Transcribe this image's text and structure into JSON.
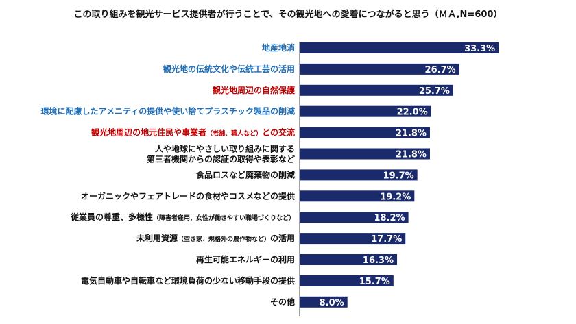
{
  "chart_data": {
    "type": "bar",
    "orientation": "horizontal",
    "title": "この取り組みを観光サービス提供者が行うことで、その観光地への愛着につながると思う（ＭＡ,N=600）",
    "categories": [
      {
        "label": "地産地消",
        "color": "#1f6db5"
      },
      {
        "label": "観光地の伝統文化や伝統工芸の活用",
        "color": "#1f6db5"
      },
      {
        "label": "観光地周辺の自然保護",
        "color": "#c00000"
      },
      {
        "label": "環境に配慮したアメニティの提供や使い捨てプラスチック製品の削減",
        "color": "#1f6db5"
      },
      {
        "label": "観光地周辺の地元住民や事業者",
        "note": "（老舗、職人など）",
        "after": "との交流",
        "color": "#c00000"
      },
      {
        "label": "人や地球にやさしい取り組みに関する",
        "label2": "第三者機関からの認証の取得や表彰など",
        "color": "#111111"
      },
      {
        "label": "食品ロスなど廃棄物の削減",
        "color": "#111111"
      },
      {
        "label": "オーガニックやフェアトレードの食材やコスメなどの提供",
        "color": "#111111"
      },
      {
        "label": "従業員の尊重、多様性",
        "note": "（障害者雇用、女性が働きやすい職場づくりなど）",
        "color": "#111111"
      },
      {
        "label": "未利用資源",
        "note": "（空き家、規格外の農作物など）",
        "after": "の活用",
        "color": "#111111"
      },
      {
        "label": "再生可能エネルギーの利用",
        "color": "#111111"
      },
      {
        "label": "電気自動車や自転車など環境負荷の少ない移動手段の提供",
        "color": "#111111"
      },
      {
        "label": "その他",
        "color": "#111111"
      }
    ],
    "values": [
      33.3,
      26.7,
      25.7,
      22.0,
      21.8,
      21.8,
      19.7,
      19.2,
      18.2,
      17.7,
      16.3,
      15.7,
      8.0
    ],
    "value_labels": [
      "33.3%",
      "26.7%",
      "25.7%",
      "22.0%",
      "21.8%",
      "21.8%",
      "19.7%",
      "19.2%",
      "18.2%",
      "17.7%",
      "16.3%",
      "15.7%",
      "8.0%"
    ],
    "bar_color": "#1b2a6b",
    "xlim": [
      0,
      35
    ],
    "grid": false,
    "legend": "none"
  }
}
